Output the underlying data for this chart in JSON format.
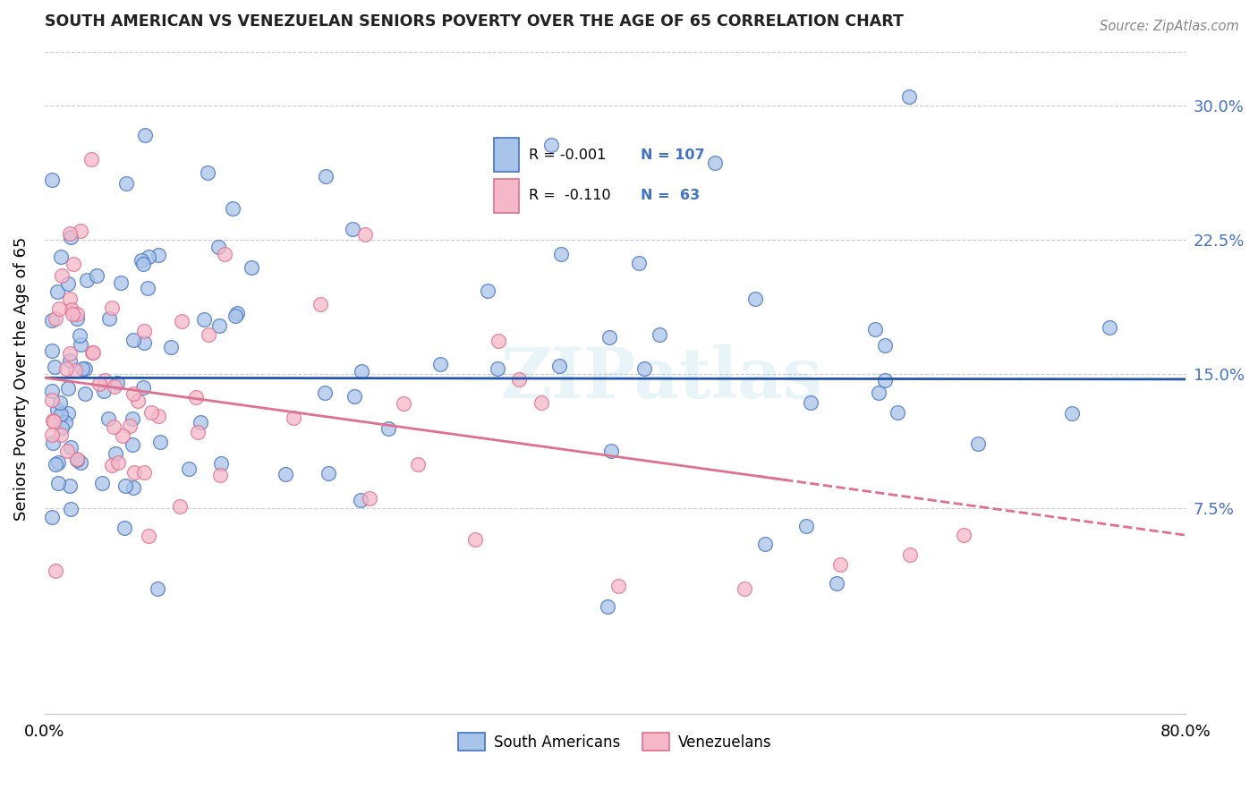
{
  "title": "SOUTH AMERICAN VS VENEZUELAN SENIORS POVERTY OVER THE AGE OF 65 CORRELATION CHART",
  "source": "Source: ZipAtlas.com",
  "ylabel": "Seniors Poverty Over the Age of 65",
  "yticks": [
    0.075,
    0.15,
    0.225,
    0.3
  ],
  "ytick_labels": [
    "7.5%",
    "15.0%",
    "22.5%",
    "30.0%"
  ],
  "xmin": 0.0,
  "xmax": 0.8,
  "ymin": -0.04,
  "ymax": 0.335,
  "r_blue": "-0.001",
  "n_blue": "107",
  "r_pink": "-0.110",
  "n_pink": "63",
  "blue_fill": "#a8c4e8",
  "blue_edge": "#4472c4",
  "pink_fill": "#f4b8c8",
  "pink_edge": "#e07090",
  "blue_line_color": "#2255aa",
  "pink_line_color": "#e07090",
  "legend_blue_label": "South Americans",
  "legend_pink_label": "Venezuelans",
  "watermark": "ZIPatlas",
  "grid_color": "#cccccc",
  "title_color": "#222222",
  "source_color": "#888888",
  "ytick_color": "#4472c4",
  "background_color": "#ffffff"
}
